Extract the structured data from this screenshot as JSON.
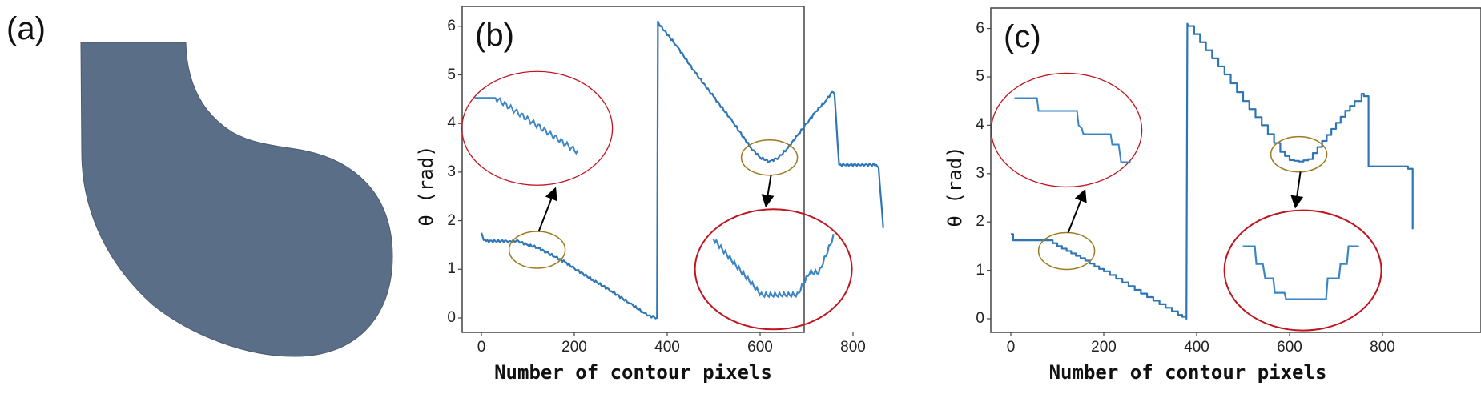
{
  "panels": {
    "a": {
      "label": "(a)",
      "shape_color": "#5b6e87",
      "description": "filled contour shape"
    },
    "b": {
      "label": "(b)"
    },
    "c": {
      "label": "(c)"
    }
  },
  "colors": {
    "line": "#2e75b6",
    "zoom_source_ellipse": "#9c7a1e",
    "zoom_inset_ellipse": "#c0141e",
    "arrow": "#000000",
    "axes": "#444444"
  },
  "chart_data": [
    {
      "type": "line",
      "panel": "(b)",
      "title": "",
      "xlabel": "Number of contour pixels",
      "ylabel": "θ (rad)",
      "xticks": [
        "0",
        "200",
        "400",
        "600",
        "800"
      ],
      "yticks": [
        "0",
        "1",
        "2",
        "3",
        "4",
        "5",
        "6"
      ],
      "xlim": [
        -40,
        910
      ],
      "ylim": [
        -0.25,
        6.35
      ],
      "grid": false,
      "style": "noisy",
      "series": [
        {
          "name": "theta",
          "x": [
            0,
            5,
            10,
            60,
            80,
            100,
            120,
            140,
            160,
            180,
            200,
            240,
            280,
            320,
            350,
            360,
            378,
            380,
            382,
            420,
            460,
            500,
            540,
            580,
            600,
            620,
            640,
            660,
            680,
            700,
            720,
            740,
            755,
            760,
            770,
            850,
            855,
            865
          ],
          "y": [
            1.75,
            1.6,
            1.58,
            1.58,
            1.58,
            1.5,
            1.45,
            1.35,
            1.25,
            1.15,
            1.02,
            0.78,
            0.55,
            0.3,
            0.1,
            0.05,
            0.0,
            6.1,
            6.05,
            5.6,
            5.05,
            4.55,
            4.05,
            3.5,
            3.3,
            3.22,
            3.3,
            3.5,
            3.75,
            4.0,
            4.25,
            4.45,
            4.65,
            4.6,
            3.15,
            3.15,
            3.1,
            1.85
          ]
        }
      ],
      "annotations": [
        {
          "type": "ellipse",
          "role": "zoom-source",
          "center": [
            120,
            1.4
          ],
          "note": "olive ellipse around first descent"
        },
        {
          "type": "ellipse",
          "role": "zoom-inset",
          "center": [
            120,
            3.9
          ],
          "note": "red ellipse, magnified noisy descent"
        },
        {
          "type": "ellipse",
          "role": "zoom-source",
          "center": [
            620,
            3.3
          ],
          "note": "olive ellipse around valley"
        },
        {
          "type": "ellipse",
          "role": "zoom-inset",
          "center": [
            620,
            1.0
          ],
          "note": "red ellipse, magnified noisy valley"
        },
        {
          "type": "arrow",
          "from": "zoom-source",
          "to": "zoom-inset"
        }
      ]
    },
    {
      "type": "line",
      "panel": "(c)",
      "title": "",
      "xlabel": "Number of contour pixels",
      "ylabel": "θ (rad)",
      "xticks": [
        "0",
        "200",
        "400",
        "600",
        "800"
      ],
      "yticks": [
        "0",
        "1",
        "2",
        "3",
        "4",
        "5",
        "6"
      ],
      "xlim": [
        -40,
        910
      ],
      "ylim": [
        -0.25,
        6.35
      ],
      "grid": false,
      "style": "stepped",
      "series": [
        {
          "name": "theta",
          "x": [
            0,
            5,
            10,
            80,
            100,
            120,
            140,
            160,
            180,
            200,
            240,
            280,
            320,
            360,
            378,
            380,
            382,
            420,
            460,
            500,
            540,
            580,
            600,
            620,
            640,
            660,
            680,
            700,
            720,
            740,
            755,
            760,
            770,
            850,
            855,
            865
          ],
          "y": [
            1.75,
            1.62,
            1.62,
            1.62,
            1.5,
            1.4,
            1.3,
            1.2,
            1.08,
            0.98,
            0.75,
            0.52,
            0.3,
            0.08,
            0.0,
            6.1,
            6.05,
            5.55,
            5.05,
            4.5,
            4.0,
            3.45,
            3.28,
            3.25,
            3.3,
            3.55,
            3.8,
            4.05,
            4.3,
            4.5,
            4.65,
            4.6,
            3.15,
            3.15,
            3.1,
            1.85
          ]
        }
      ],
      "annotations": [
        {
          "type": "ellipse",
          "role": "zoom-source",
          "center": [
            120,
            1.4
          ],
          "note": "olive ellipse around first descent"
        },
        {
          "type": "ellipse",
          "role": "zoom-inset",
          "center": [
            120,
            3.9
          ],
          "note": "red ellipse, magnified stepped descent"
        },
        {
          "type": "ellipse",
          "role": "zoom-source",
          "center": [
            620,
            3.4
          ],
          "note": "olive ellipse around valley"
        },
        {
          "type": "ellipse",
          "role": "zoom-inset",
          "center": [
            620,
            1.0
          ],
          "note": "red ellipse, magnified stepped valley"
        },
        {
          "type": "arrow",
          "from": "zoom-source",
          "to": "zoom-inset"
        }
      ]
    }
  ]
}
